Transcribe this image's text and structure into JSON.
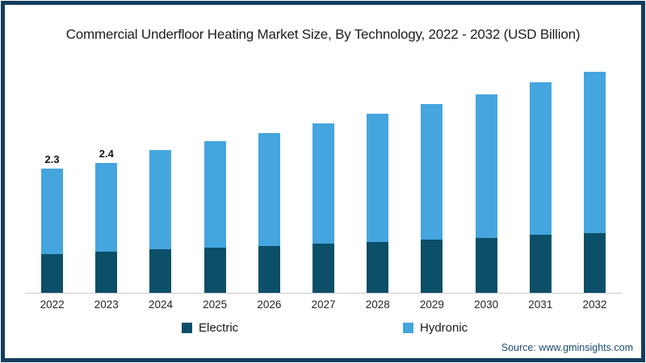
{
  "window": {
    "border_color": "#133d5e",
    "background_color": "#ffffff"
  },
  "title": "Commercial Underfloor Heating Market Size, By Technology, 2022 - 2032 (USD Billion)",
  "source": "Source: www.gminsights.com",
  "legend": {
    "items": [
      {
        "label": "Electric",
        "color": "#0b4f68"
      },
      {
        "label": "Hydronic",
        "color": "#45a5de"
      }
    ],
    "position": "bottom"
  },
  "chart_data": {
    "type": "bar",
    "stacked": true,
    "title": "Commercial Underfloor Heating Market Size, By Technology, 2022 - 2032 (USD Billion)",
    "xlabel": "",
    "ylabel": "USD Billion",
    "ylim": [
      0,
      4.3
    ],
    "grid": false,
    "legend_position": "bottom",
    "categories": [
      "2022",
      "2023",
      "2024",
      "2025",
      "2026",
      "2027",
      "2028",
      "2029",
      "2030",
      "2031",
      "2032"
    ],
    "series": [
      {
        "name": "Electric",
        "color": "#0b4f68",
        "values": [
          0.72,
          0.76,
          0.8,
          0.83,
          0.87,
          0.91,
          0.94,
          0.98,
          1.02,
          1.07,
          1.11
        ]
      },
      {
        "name": "Hydronic",
        "color": "#45a5de",
        "values": [
          1.58,
          1.64,
          1.84,
          1.97,
          2.09,
          2.23,
          2.37,
          2.52,
          2.65,
          2.82,
          2.98
        ]
      }
    ],
    "totals": [
      2.3,
      2.4,
      2.64,
      2.8,
      2.96,
      3.14,
      3.31,
      3.5,
      3.67,
      3.89,
      4.09
    ],
    "data_labels": [
      "2.3",
      "2.4",
      "",
      "",
      "",
      "",
      "",
      "",
      "",
      "",
      ""
    ]
  }
}
